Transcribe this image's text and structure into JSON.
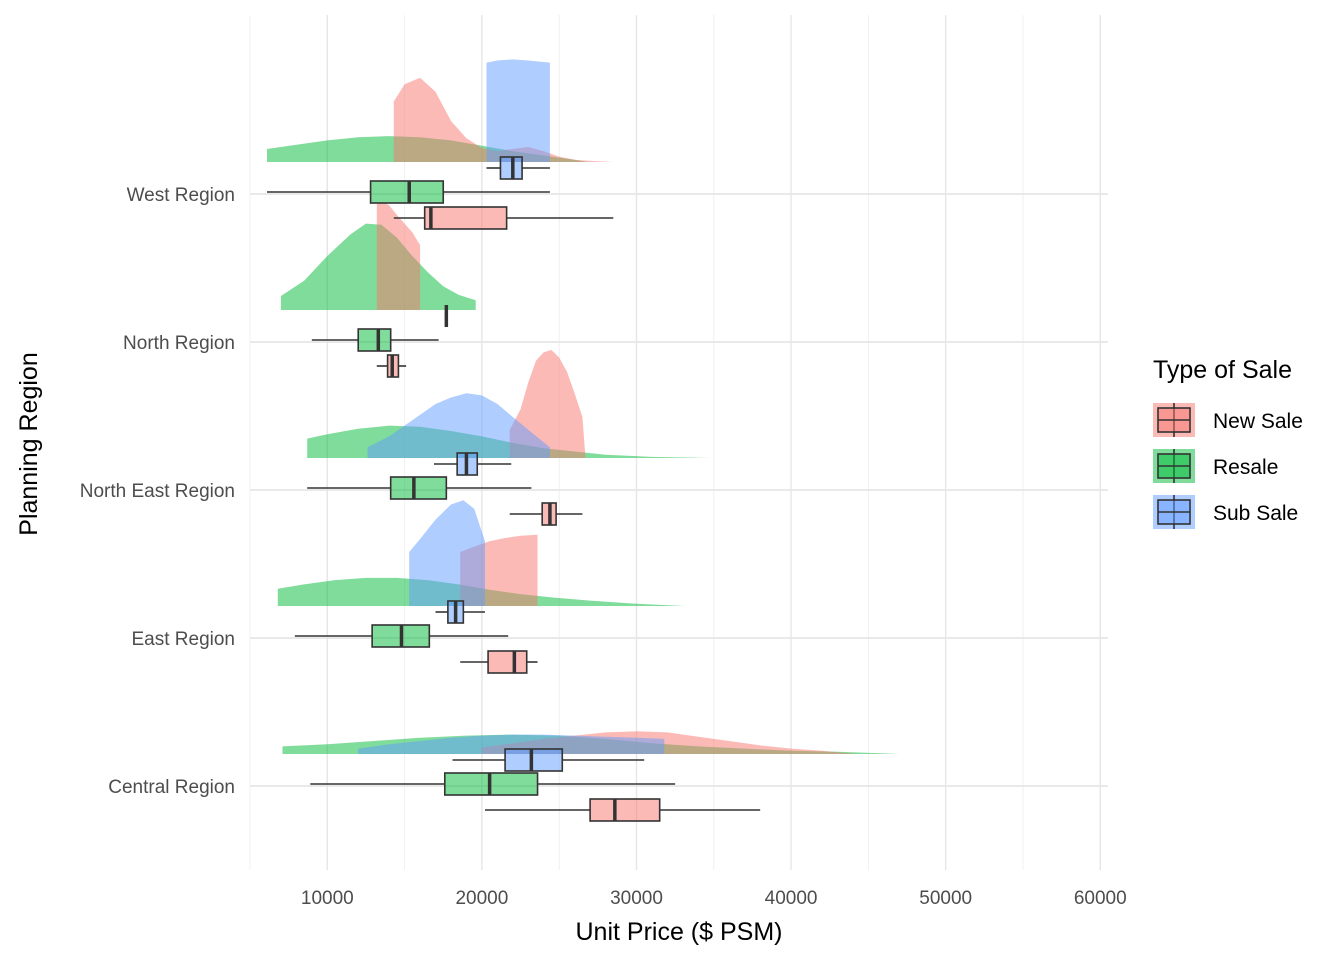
{
  "chart_data": {
    "type": "raincloud",
    "title": "",
    "xlabel": "Unit Price ($ PSM)",
    "ylabel": "Planning Region",
    "xlim": [
      5000,
      60500
    ],
    "x_ticks": [
      10000,
      20000,
      30000,
      40000,
      50000,
      60000
    ],
    "x_tick_labels": [
      "10000",
      "20000",
      "30000",
      "40000",
      "50000",
      "60000"
    ],
    "orientation": "horizontal",
    "grid": true,
    "legend_position": "right",
    "legend": {
      "title": "Type of Sale",
      "entries": [
        {
          "name": "New Sale",
          "color": "#F8766D"
        },
        {
          "name": "Resale",
          "color": "#00BA38"
        },
        {
          "name": "Sub Sale",
          "color": "#619CFF"
        }
      ]
    },
    "categories": [
      "West Region",
      "North Region",
      "North East Region",
      "East Region",
      "Central Region"
    ],
    "series": [
      {
        "name": "New Sale",
        "color": "#F8766D",
        "values": [
          {
            "region": "West Region",
            "min": 14300,
            "q1": 16300,
            "median": 16700,
            "q3": 21600,
            "max": 28500,
            "density": [
              [
                14300,
                0.56
              ],
              [
                15000,
                0.72
              ],
              [
                16000,
                0.78
              ],
              [
                17000,
                0.65
              ],
              [
                18000,
                0.38
              ],
              [
                19000,
                0.22
              ],
              [
                20000,
                0.13
              ],
              [
                21000,
                0.1
              ],
              [
                22000,
                0.12
              ],
              [
                23000,
                0.14
              ],
              [
                24000,
                0.1
              ],
              [
                25000,
                0.05
              ],
              [
                26000,
                0.02
              ],
              [
                27000,
                0.01
              ],
              [
                28500,
                0.0
              ]
            ]
          },
          {
            "region": "North Region",
            "min": 13200,
            "q1": 13900,
            "median": 14200,
            "q3": 14600,
            "max": 15100,
            "density": [
              [
                13200,
                0.98
              ],
              [
                13600,
                1.0
              ],
              [
                14000,
                0.97
              ],
              [
                14500,
                0.88
              ],
              [
                15000,
                0.8
              ],
              [
                15500,
                0.72
              ],
              [
                16000,
                0.6
              ]
            ]
          },
          {
            "region": "North East Region",
            "min": 21800,
            "q1": 23900,
            "median": 24400,
            "q3": 24800,
            "max": 26500,
            "density": [
              [
                21800,
                0.26
              ],
              [
                22500,
                0.45
              ],
              [
                23000,
                0.7
              ],
              [
                23500,
                0.9
              ],
              [
                24000,
                0.98
              ],
              [
                24500,
                1.0
              ],
              [
                25000,
                0.93
              ],
              [
                25500,
                0.8
              ],
              [
                26000,
                0.6
              ],
              [
                26500,
                0.38
              ],
              [
                26700,
                0.0
              ]
            ]
          },
          {
            "region": "East Region",
            "min": 18600,
            "q1": 20400,
            "median": 22100,
            "q3": 22900,
            "max": 23600,
            "density": [
              [
                18600,
                0.5
              ],
              [
                19500,
                0.55
              ],
              [
                20500,
                0.6
              ],
              [
                21500,
                0.63
              ],
              [
                22500,
                0.65
              ],
              [
                23600,
                0.66
              ]
            ]
          },
          {
            "region": "Central Region",
            "min": 20200,
            "q1": 27000,
            "median": 28600,
            "q3": 31500,
            "max": 38000,
            "density": [
              [
                20000,
                0.06
              ],
              [
                22000,
                0.1
              ],
              [
                24000,
                0.14
              ],
              [
                26000,
                0.17
              ],
              [
                28000,
                0.2
              ],
              [
                30000,
                0.21
              ],
              [
                32000,
                0.2
              ],
              [
                34000,
                0.16
              ],
              [
                36000,
                0.12
              ],
              [
                38000,
                0.08
              ],
              [
                40000,
                0.05
              ],
              [
                42000,
                0.03
              ],
              [
                44200,
                0.0
              ]
            ]
          }
        ]
      },
      {
        "name": "Resale",
        "color": "#00BA38",
        "values": [
          {
            "region": "West Region",
            "min": 6100,
            "q1": 12800,
            "median": 15300,
            "q3": 17500,
            "max": 24400,
            "density": [
              [
                6100,
                0.12
              ],
              [
                8000,
                0.16
              ],
              [
                10000,
                0.2
              ],
              [
                12000,
                0.23
              ],
              [
                14000,
                0.24
              ],
              [
                16000,
                0.23
              ],
              [
                18000,
                0.2
              ],
              [
                20000,
                0.15
              ],
              [
                22000,
                0.1
              ],
              [
                24000,
                0.06
              ],
              [
                26000,
                0.02
              ],
              [
                26800,
                0.0
              ]
            ]
          },
          {
            "region": "North Region",
            "min": 9000,
            "q1": 12000,
            "median": 13300,
            "q3": 14100,
            "max": 17200,
            "density": [
              [
                7000,
                0.13
              ],
              [
                8500,
                0.27
              ],
              [
                10000,
                0.5
              ],
              [
                11500,
                0.7
              ],
              [
                12500,
                0.8
              ],
              [
                13500,
                0.79
              ],
              [
                14500,
                0.67
              ],
              [
                15500,
                0.5
              ],
              [
                16500,
                0.35
              ],
              [
                17500,
                0.22
              ],
              [
                18500,
                0.14
              ],
              [
                19600,
                0.09
              ]
            ]
          },
          {
            "region": "North East Region",
            "min": 8700,
            "q1": 14100,
            "median": 15600,
            "q3": 17700,
            "max": 23200,
            "density": [
              [
                8700,
                0.18
              ],
              [
                10000,
                0.22
              ],
              [
                12000,
                0.27
              ],
              [
                14000,
                0.3
              ],
              [
                16000,
                0.29
              ],
              [
                18000,
                0.25
              ],
              [
                20000,
                0.2
              ],
              [
                22000,
                0.14
              ],
              [
                24000,
                0.09
              ],
              [
                26000,
                0.06
              ],
              [
                28000,
                0.03
              ],
              [
                31000,
                0.01
              ],
              [
                34800,
                0.0
              ]
            ]
          },
          {
            "region": "East Region",
            "min": 7900,
            "q1": 12900,
            "median": 14800,
            "q3": 16600,
            "max": 21700,
            "density": [
              [
                6800,
                0.16
              ],
              [
                8500,
                0.2
              ],
              [
                10500,
                0.24
              ],
              [
                12500,
                0.26
              ],
              [
                14500,
                0.26
              ],
              [
                16500,
                0.24
              ],
              [
                18500,
                0.2
              ],
              [
                20500,
                0.15
              ],
              [
                22500,
                0.11
              ],
              [
                24500,
                0.08
              ],
              [
                27000,
                0.05
              ],
              [
                30000,
                0.02
              ],
              [
                33100,
                0.0
              ]
            ]
          },
          {
            "region": "Central Region",
            "min": 8900,
            "q1": 17600,
            "median": 20500,
            "q3": 23600,
            "max": 32500,
            "density": [
              [
                7100,
                0.07
              ],
              [
                10000,
                0.09
              ],
              [
                13000,
                0.12
              ],
              [
                16000,
                0.15
              ],
              [
                19000,
                0.17
              ],
              [
                22000,
                0.18
              ],
              [
                25000,
                0.17
              ],
              [
                28000,
                0.14
              ],
              [
                31000,
                0.1
              ],
              [
                34000,
                0.07
              ],
              [
                37000,
                0.05
              ],
              [
                40000,
                0.03
              ],
              [
                43000,
                0.02
              ],
              [
                47000,
                0.0
              ]
            ]
          }
        ]
      },
      {
        "name": "Sub Sale",
        "color": "#619CFF",
        "values": [
          {
            "region": "West Region",
            "min": 20300,
            "q1": 21200,
            "median": 22000,
            "q3": 22600,
            "max": 24400,
            "density": [
              [
                20300,
                0.92
              ],
              [
                21000,
                0.94
              ],
              [
                22000,
                0.95
              ],
              [
                23000,
                0.94
              ],
              [
                24400,
                0.92
              ]
            ]
          },
          {
            "region": "North Region",
            "min": 17700,
            "q1": 17700,
            "median": 17700,
            "q3": 17700,
            "max": 17700,
            "density": []
          },
          {
            "region": "North East Region",
            "min": 16900,
            "q1": 18400,
            "median": 19000,
            "q3": 19700,
            "max": 21900,
            "density": [
              [
                12600,
                0.1
              ],
              [
                14000,
                0.2
              ],
              [
                15500,
                0.35
              ],
              [
                17000,
                0.5
              ],
              [
                18000,
                0.56
              ],
              [
                19000,
                0.6
              ],
              [
                20000,
                0.58
              ],
              [
                21000,
                0.5
              ],
              [
                22000,
                0.38
              ],
              [
                23000,
                0.26
              ],
              [
                24400,
                0.1
              ]
            ]
          },
          {
            "region": "East Region",
            "min": 17000,
            "q1": 17800,
            "median": 18300,
            "q3": 18800,
            "max": 20200,
            "density": [
              [
                15300,
                0.5
              ],
              [
                16000,
                0.62
              ],
              [
                17000,
                0.8
              ],
              [
                18000,
                0.94
              ],
              [
                18800,
                0.98
              ],
              [
                19500,
                0.9
              ],
              [
                20200,
                0.6
              ]
            ]
          },
          {
            "region": "Central Region",
            "min": 18100,
            "q1": 21500,
            "median": 23200,
            "q3": 25200,
            "max": 30500,
            "density": [
              [
                12000,
                0.05
              ],
              [
                14000,
                0.09
              ],
              [
                16000,
                0.12
              ],
              [
                18000,
                0.15
              ],
              [
                20000,
                0.17
              ],
              [
                22000,
                0.18
              ],
              [
                24000,
                0.18
              ],
              [
                26000,
                0.17
              ],
              [
                28000,
                0.16
              ],
              [
                30000,
                0.15
              ],
              [
                31800,
                0.14
              ]
            ]
          }
        ]
      }
    ]
  }
}
